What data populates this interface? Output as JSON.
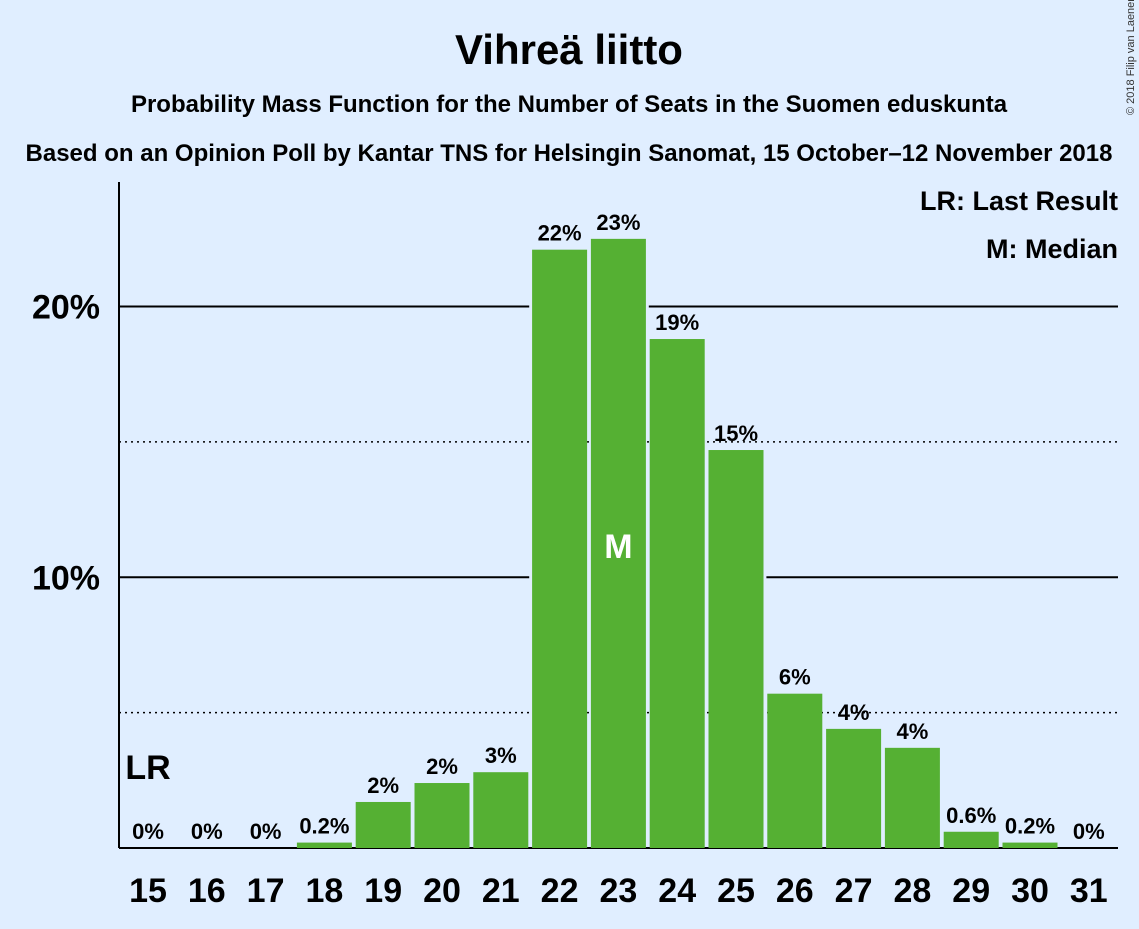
{
  "chart_data": {
    "type": "bar",
    "title": "Vihreä liitto",
    "subtitle": "Probability Mass Function for the Number of Seats in the Suomen eduskunta",
    "subtitle2": "Based on an Opinion Poll by Kantar TNS for Helsingin Sanomat, 15 October–12 November 2018",
    "copyright": "© 2018 Filip van Laenen",
    "categories": [
      "15",
      "16",
      "17",
      "18",
      "19",
      "20",
      "21",
      "22",
      "23",
      "24",
      "25",
      "26",
      "27",
      "28",
      "29",
      "30",
      "31"
    ],
    "values": [
      0,
      0,
      0,
      0.2,
      1.7,
      2.4,
      2.8,
      22.1,
      22.5,
      18.8,
      14.7,
      5.7,
      4.4,
      3.7,
      0.6,
      0.2,
      0
    ],
    "value_labels": [
      "0%",
      "0%",
      "0%",
      "0.2%",
      "2%",
      "2%",
      "3%",
      "22%",
      "23%",
      "19%",
      "15%",
      "6%",
      "4%",
      "4%",
      "0.6%",
      "0.2%",
      "0%"
    ],
    "ylim": [
      0,
      24.6
    ],
    "yticks": [
      10,
      20
    ],
    "ytick_labels": [
      "10%",
      "20%"
    ],
    "dotted_gridlines": [
      5,
      15
    ],
    "bar_color": "#55b033",
    "background_color": "#e0eeff",
    "last_result": {
      "seat": "15",
      "label": "LR"
    },
    "median": {
      "seat": "23",
      "label": "M"
    },
    "legend": [
      "LR: Last Result",
      "M: Median"
    ],
    "legend_position": "top-right"
  }
}
